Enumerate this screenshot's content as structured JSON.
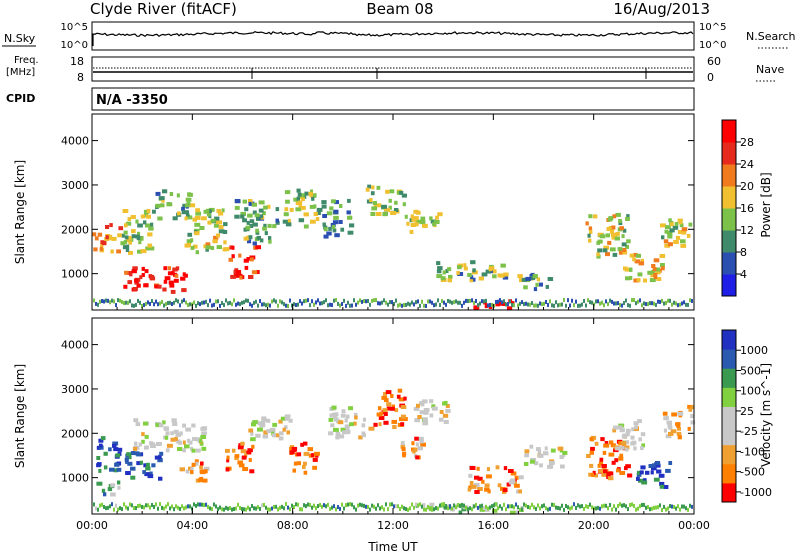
{
  "header": {
    "station": "Clyde River (fitACF)",
    "beam": "Beam 08",
    "date": "16/Aug/2013"
  },
  "status": {
    "nsky_label": "N.Sky",
    "nsky_ticks": [
      "10^5",
      "10^0"
    ],
    "nsearch_label": "N.Search",
    "nsearch_ticks": [
      "10^5",
      "10^0"
    ],
    "freq_label": "Freq.",
    "freq_unit": "[MHz]",
    "freq_ticks": [
      "18",
      "8"
    ],
    "nave_label": "Nave",
    "nave_ticks": [
      "60",
      "0"
    ],
    "cpid_label": "CPID",
    "cpid_value": "N/A -3350"
  },
  "colors": {
    "power": [
      "#1e1ee6",
      "#2a4fb0",
      "#3f8a6a",
      "#7cc24a",
      "#f0c030",
      "#f07a1e",
      "#e62a1e",
      "#ff0000"
    ],
    "velocity": [
      "#ff0000",
      "#ff7f00",
      "#f0a030",
      "#c8c8c8",
      "#c8c8c8",
      "#80d040",
      "#3a9a50",
      "#2a5ab0",
      "#2030c0"
    ]
  },
  "chart_data": [
    {
      "type": "heatmap",
      "quantity": "Power",
      "xlabel": "",
      "ylabel": "Slant Range [km]",
      "colorbar_label": "Power [dB]",
      "colorbar_ticks": [
        "28",
        "24",
        "20",
        "16",
        "12",
        "8",
        "4"
      ],
      "x_ticks": [
        "00:00",
        "04:00",
        "08:00",
        "12:00",
        "16:00",
        "20:00",
        "00:00"
      ],
      "y_ticks": [
        "4000",
        "3000",
        "2000",
        "1000"
      ],
      "ylim": [
        180,
        4600
      ],
      "blobs": [
        {
          "t": 0.5,
          "r": 1850,
          "dt": 0.8,
          "dr": 450,
          "v": 0.7
        },
        {
          "t": 1.8,
          "r": 2000,
          "dt": 1.0,
          "dr": 700,
          "v": 0.45
        },
        {
          "t": 2.5,
          "r": 900,
          "dt": 1.8,
          "dr": 400,
          "v": 0.9
        },
        {
          "t": 3.2,
          "r": 2600,
          "dt": 1.0,
          "dr": 450,
          "v": 0.35
        },
        {
          "t": 4.5,
          "r": 2000,
          "dt": 1.2,
          "dr": 700,
          "v": 0.5
        },
        {
          "t": 6.0,
          "r": 1300,
          "dt": 0.8,
          "dr": 500,
          "v": 0.85
        },
        {
          "t": 6.5,
          "r": 2200,
          "dt": 1.2,
          "dr": 700,
          "v": 0.4
        },
        {
          "t": 8.3,
          "r": 2500,
          "dt": 1.0,
          "dr": 600,
          "v": 0.45
        },
        {
          "t": 9.7,
          "r": 2300,
          "dt": 0.8,
          "dr": 600,
          "v": 0.3
        },
        {
          "t": 11.7,
          "r": 2700,
          "dt": 1.2,
          "dr": 450,
          "v": 0.45
        },
        {
          "t": 13.1,
          "r": 2200,
          "dt": 1.0,
          "dr": 350,
          "v": 0.5
        },
        {
          "t": 15.0,
          "r": 1100,
          "dt": 2.0,
          "dr": 300,
          "v": 0.4
        },
        {
          "t": 16.0,
          "r": 350,
          "dt": 1.2,
          "dr": 150,
          "v": 1.0
        },
        {
          "t": 17.5,
          "r": 900,
          "dt": 1.0,
          "dr": 300,
          "v": 0.35
        },
        {
          "t": 20.5,
          "r": 1900,
          "dt": 1.2,
          "dr": 700,
          "v": 0.5
        },
        {
          "t": 22.0,
          "r": 1200,
          "dt": 1.2,
          "dr": 450,
          "v": 0.55
        },
        {
          "t": 23.2,
          "r": 2000,
          "dt": 0.9,
          "dr": 500,
          "v": 0.5
        }
      ]
    },
    {
      "type": "heatmap",
      "quantity": "Velocity",
      "xlabel": "Time UT",
      "ylabel": "Slant Range [km]",
      "colorbar_label": "Velocity [m s^-1]",
      "colorbar_ticks": [
        "1000",
        "500",
        "100",
        "25",
        "-25",
        "-100",
        "-500",
        "-1000"
      ],
      "x_ticks": [
        "00:00",
        "04:00",
        "08:00",
        "12:00",
        "16:00",
        "20:00",
        "00:00"
      ],
      "y_ticks": [
        "4000",
        "3000",
        "2000",
        "1000"
      ],
      "ylim": [
        180,
        4600
      ],
      "blobs": [
        {
          "t": 0.6,
          "r": 1600,
          "dt": 0.7,
          "dr": 600,
          "v": 0.85
        },
        {
          "t": 0.6,
          "r": 800,
          "dt": 0.7,
          "dr": 200,
          "v": 0.65
        },
        {
          "t": 2.0,
          "r": 1300,
          "dt": 1.0,
          "dr": 450,
          "v": 0.85
        },
        {
          "t": 3.0,
          "r": 2000,
          "dt": 2.0,
          "dr": 500,
          "v": 0.45
        },
        {
          "t": 4.0,
          "r": 1200,
          "dt": 0.8,
          "dr": 350,
          "v": 0.25
        },
        {
          "t": 5.8,
          "r": 1500,
          "dt": 0.8,
          "dr": 450,
          "v": 0.15
        },
        {
          "t": 7.0,
          "r": 2200,
          "dt": 1.2,
          "dr": 450,
          "v": 0.45
        },
        {
          "t": 8.4,
          "r": 1500,
          "dt": 0.8,
          "dr": 500,
          "v": 0.15
        },
        {
          "t": 10.2,
          "r": 2300,
          "dt": 1.2,
          "dr": 500,
          "v": 0.45
        },
        {
          "t": 11.8,
          "r": 2600,
          "dt": 0.9,
          "dr": 600,
          "v": 0.15
        },
        {
          "t": 12.6,
          "r": 1700,
          "dt": 0.8,
          "dr": 350,
          "v": 0.25
        },
        {
          "t": 13.5,
          "r": 2500,
          "dt": 1.0,
          "dr": 400,
          "v": 0.45
        },
        {
          "t": 15.0,
          "r": 350,
          "dt": 3.0,
          "dr": 150,
          "v": 0.6
        },
        {
          "t": 16.0,
          "r": 1000,
          "dt": 1.5,
          "dr": 400,
          "v": 0.2
        },
        {
          "t": 18.0,
          "r": 1500,
          "dt": 1.2,
          "dr": 350,
          "v": 0.45
        },
        {
          "t": 20.5,
          "r": 1500,
          "dt": 1.2,
          "dr": 700,
          "v": 0.15
        },
        {
          "t": 21.3,
          "r": 2000,
          "dt": 1.0,
          "dr": 500,
          "v": 0.45
        },
        {
          "t": 22.3,
          "r": 1100,
          "dt": 1.0,
          "dr": 400,
          "v": 0.85
        },
        {
          "t": 23.3,
          "r": 2300,
          "dt": 0.8,
          "dr": 500,
          "v": 0.3
        }
      ]
    }
  ]
}
